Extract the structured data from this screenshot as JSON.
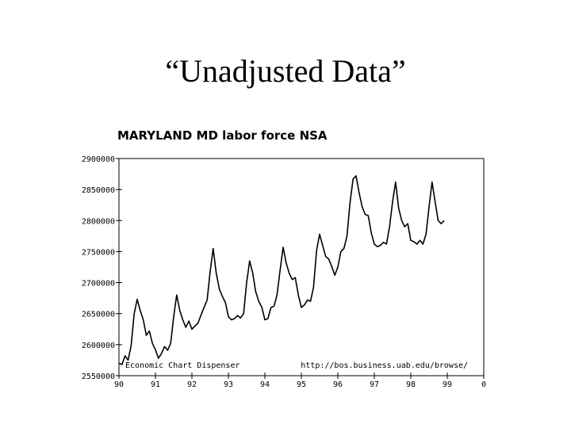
{
  "slide": {
    "title": "“Unadjusted Data”"
  },
  "colors": {
    "line": "#000000",
    "axis": "#000000",
    "background": "#ffffff"
  },
  "chart_data": {
    "type": "line",
    "title": "MARYLAND MD labor force NSA",
    "xlabel": "",
    "ylabel": "",
    "xlim": [
      1990,
      2000
    ],
    "ylim": [
      2550000,
      2900000
    ],
    "grid": false,
    "x_ticks": [
      {
        "value": 1990,
        "label": "90"
      },
      {
        "value": 1991,
        "label": "91"
      },
      {
        "value": 1992,
        "label": "92"
      },
      {
        "value": 1993,
        "label": "93"
      },
      {
        "value": 1994,
        "label": "94"
      },
      {
        "value": 1995,
        "label": "95"
      },
      {
        "value": 1996,
        "label": "96"
      },
      {
        "value": 1997,
        "label": "97"
      },
      {
        "value": 1998,
        "label": "98"
      },
      {
        "value": 1999,
        "label": "99"
      },
      {
        "value": 2000,
        "label": "0"
      }
    ],
    "y_ticks": [
      {
        "value": 2550000,
        "label": "2550000"
      },
      {
        "value": 2600000,
        "label": "2600000"
      },
      {
        "value": 2650000,
        "label": "2650000"
      },
      {
        "value": 2700000,
        "label": "2700000"
      },
      {
        "value": 2750000,
        "label": "2750000"
      },
      {
        "value": 2800000,
        "label": "2800000"
      },
      {
        "value": 2850000,
        "label": "2850000"
      },
      {
        "value": 2900000,
        "label": "2900000"
      }
    ],
    "annotations": {
      "left": "Economic Chart Dispenser",
      "right": "http://bos.business.uab.edu/browse/"
    },
    "series": [
      {
        "x": [
          1990.0,
          1990.083,
          1990.167,
          1990.25,
          1990.333,
          1990.417,
          1990.5,
          1990.583,
          1990.667,
          1990.75,
          1990.833,
          1990.917,
          1991.0,
          1991.083,
          1991.167,
          1991.25,
          1991.333,
          1991.417,
          1991.5,
          1991.583,
          1991.667,
          1991.75,
          1991.833,
          1991.917,
          1992.0,
          1992.083,
          1992.167,
          1992.25,
          1992.333,
          1992.417,
          1992.5,
          1992.583,
          1992.667,
          1992.75,
          1992.833,
          1992.917,
          1993.0,
          1993.083,
          1993.167,
          1993.25,
          1993.333,
          1993.417,
          1993.5,
          1993.583,
          1993.667,
          1993.75,
          1993.833,
          1993.917,
          1994.0,
          1994.083,
          1994.167,
          1994.25,
          1994.333,
          1994.417,
          1994.5,
          1994.583,
          1994.667,
          1994.75,
          1994.833,
          1994.917,
          1995.0,
          1995.083,
          1995.167,
          1995.25,
          1995.333,
          1995.417,
          1995.5,
          1995.583,
          1995.667,
          1995.75,
          1995.833,
          1995.917,
          1996.0,
          1996.083,
          1996.167,
          1996.25,
          1996.333,
          1996.417,
          1996.5,
          1996.583,
          1996.667,
          1996.75,
          1996.833,
          1996.917,
          1997.0,
          1997.083,
          1997.167,
          1997.25,
          1997.333,
          1997.417,
          1997.5,
          1997.583,
          1997.667,
          1997.75,
          1997.833,
          1997.917,
          1998.0,
          1998.083,
          1998.167,
          1998.25,
          1998.333,
          1998.417,
          1998.5,
          1998.583,
          1998.667,
          1998.75,
          1998.833,
          1998.917
        ],
        "values": [
          2570000,
          2568000,
          2582000,
          2575000,
          2598000,
          2650000,
          2673000,
          2655000,
          2640000,
          2615000,
          2622000,
          2602000,
          2592000,
          2578000,
          2586000,
          2597000,
          2591000,
          2602000,
          2645000,
          2680000,
          2655000,
          2640000,
          2628000,
          2638000,
          2625000,
          2630000,
          2635000,
          2648000,
          2660000,
          2672000,
          2718000,
          2755000,
          2715000,
          2690000,
          2678000,
          2668000,
          2645000,
          2640000,
          2642000,
          2647000,
          2643000,
          2650000,
          2700000,
          2735000,
          2715000,
          2685000,
          2670000,
          2660000,
          2640000,
          2642000,
          2660000,
          2662000,
          2680000,
          2720000,
          2757000,
          2732000,
          2715000,
          2705000,
          2708000,
          2680000,
          2660000,
          2664000,
          2672000,
          2670000,
          2692000,
          2752000,
          2778000,
          2760000,
          2742000,
          2738000,
          2726000,
          2712000,
          2725000,
          2750000,
          2755000,
          2775000,
          2828000,
          2867000,
          2872000,
          2845000,
          2822000,
          2810000,
          2808000,
          2780000,
          2762000,
          2758000,
          2760000,
          2765000,
          2762000,
          2790000,
          2830000,
          2862000,
          2820000,
          2800000,
          2790000,
          2795000,
          2768000,
          2766000,
          2762000,
          2768000,
          2762000,
          2778000,
          2822000,
          2862000,
          2830000,
          2800000,
          2795000,
          2800000
        ]
      }
    ]
  }
}
